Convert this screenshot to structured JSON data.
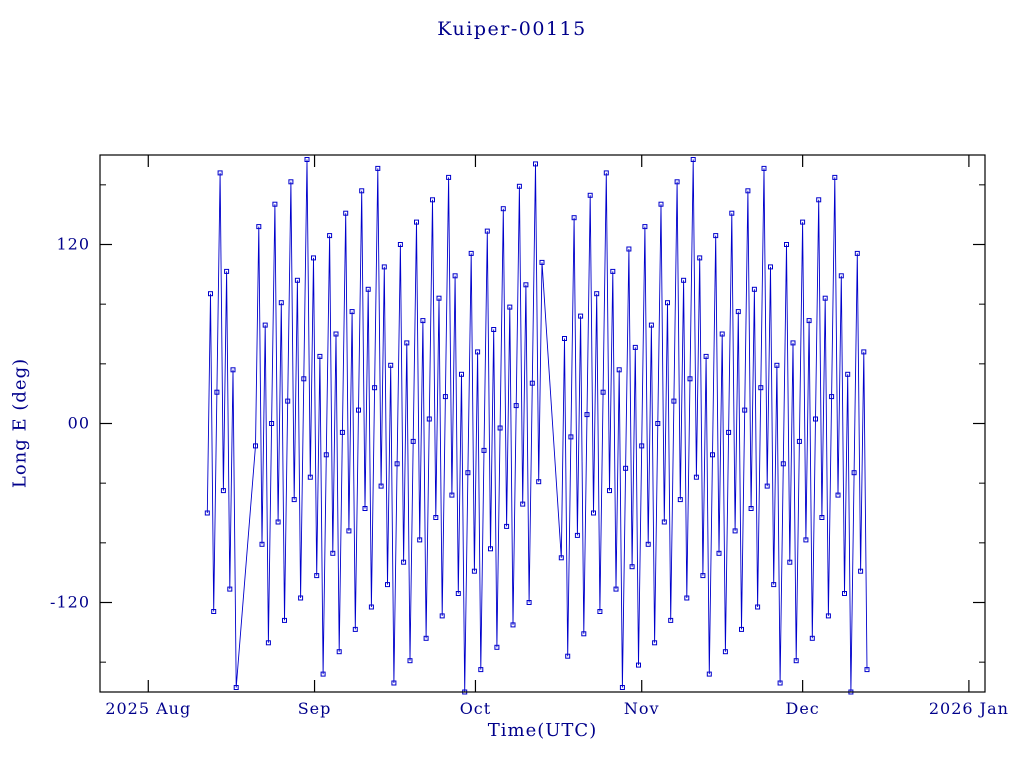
{
  "colors": {
    "background": "#ffffff",
    "data": "#0000cc",
    "text": "#00008b",
    "frame": "#000000"
  },
  "chart_data": {
    "type": "line",
    "title": "Kuiper-00115",
    "xlabel": "Time(UTC)",
    "ylabel": "Long E (deg)",
    "marker": "open-square",
    "legend": "none",
    "grid": "off",
    "x_unit": "days since 2025-08-01",
    "xlim_days": [
      -9,
      156
    ],
    "x_tick_days": [
      0,
      31,
      61,
      92,
      122,
      153
    ],
    "x_tick_labels": [
      "2025 Aug",
      "Sep",
      "Oct",
      "Nov",
      "Dec",
      "2026 Jan"
    ],
    "ylim": [
      -180,
      180
    ],
    "y_ticks": [
      {
        "value": 120,
        "label": "120"
      },
      {
        "value": 0,
        "label": "00"
      },
      {
        "value": -120,
        "label": "-120"
      }
    ],
    "y_minor_ticks": [
      -160,
      -80,
      -40,
      40,
      80,
      160
    ],
    "series": [
      {
        "name": "Long E (deg)",
        "t_days": [
          11,
          11.6,
          12.2,
          12.8,
          13.4,
          14,
          14.6,
          15.2,
          15.8,
          16.4,
          20,
          20.6,
          21.2,
          21.8,
          22.4,
          23,
          23.6,
          24.2,
          24.8,
          25.4,
          26,
          26.6,
          27.2,
          27.8,
          28.4,
          29,
          29.6,
          30.2,
          30.8,
          31.4,
          32,
          32.6,
          33.2,
          33.8,
          34.4,
          35,
          35.6,
          36.2,
          36.8,
          37.4,
          38,
          38.6,
          39.2,
          39.8,
          40.4,
          41,
          41.6,
          42.2,
          42.8,
          43.4,
          44,
          44.6,
          45.2,
          45.8,
          46.4,
          47,
          47.6,
          48.2,
          48.8,
          49.4,
          50,
          50.6,
          51.2,
          51.8,
          52.4,
          53,
          53.6,
          54.2,
          54.8,
          55.4,
          56,
          56.6,
          57.2,
          57.8,
          58.4,
          59,
          59.6,
          60.2,
          60.8,
          61.4,
          62,
          62.6,
          63.2,
          63.8,
          64.4,
          65,
          65.6,
          66.2,
          66.8,
          67.4,
          68,
          68.6,
          69.2,
          69.8,
          70.4,
          71,
          71.6,
          72.2,
          72.8,
          73.4,
          77,
          77.6,
          78.2,
          78.8,
          79.4,
          80,
          80.6,
          81.2,
          81.8,
          82.4,
          83,
          83.6,
          84.2,
          84.8,
          85.4,
          86,
          86.6,
          87.2,
          87.8,
          88.4,
          89,
          89.6,
          90.2,
          90.8,
          91.4,
          92,
          92.6,
          93.2,
          93.8,
          94.4,
          95,
          95.6,
          96.2,
          96.8,
          97.4,
          98,
          98.6,
          99.2,
          99.8,
          100.4,
          101,
          101.6,
          102.2,
          102.8,
          103.4,
          104,
          104.6,
          105.2,
          105.8,
          106.4,
          107,
          107.6,
          108.2,
          108.8,
          109.4,
          110,
          110.6,
          111.2,
          111.8,
          112.4,
          113,
          113.6,
          114.2,
          114.8,
          115.4,
          116,
          116.6,
          117.2,
          117.8,
          118.4,
          119,
          119.6,
          120.2,
          120.8,
          121.4,
          122,
          122.6,
          123.2,
          123.8,
          124.4,
          125,
          125.6,
          126.2,
          126.8,
          127.4,
          128,
          128.6,
          129.2,
          129.8,
          130.4,
          131,
          131.6,
          132.2,
          132.8,
          133.4,
          134
        ],
        "lon_deg": [
          -60,
          87,
          -126,
          21,
          168,
          -45,
          102,
          -111,
          36,
          -177,
          -15,
          132,
          -81,
          66,
          -147,
          0,
          147,
          -66,
          81,
          -132,
          15,
          162,
          -51,
          96,
          -117,
          30,
          177,
          -36,
          111,
          -102,
          45,
          -168,
          -21,
          126,
          -87,
          60,
          -153,
          -6,
          141,
          -72,
          75,
          -138,
          9,
          156,
          -57,
          90,
          -123,
          24,
          171,
          -42,
          105,
          -108,
          39,
          -174,
          -27,
          120,
          -93,
          54,
          -159,
          -12,
          135,
          -78,
          69,
          -144,
          3,
          150,
          -63,
          84,
          -129,
          18,
          165,
          -48,
          99,
          -114,
          33,
          -180,
          -33,
          114,
          -99,
          48,
          -165,
          -18,
          129,
          -84,
          63,
          -150,
          -3,
          144,
          -69,
          78,
          -135,
          12,
          159,
          -54,
          93,
          -120,
          27,
          174,
          -39,
          108,
          -90,
          57,
          -156,
          -9,
          138,
          -75,
          72,
          -141,
          6,
          153,
          -60,
          87,
          -126,
          21,
          168,
          -45,
          102,
          -111,
          36,
          -177,
          -30,
          117,
          -96,
          51,
          -162,
          -15,
          132,
          -81,
          66,
          -147,
          0,
          147,
          -66,
          81,
          -132,
          15,
          162,
          -51,
          96,
          -117,
          30,
          177,
          -36,
          111,
          -102,
          45,
          -168,
          -21,
          126,
          -87,
          60,
          -153,
          -6,
          141,
          -72,
          75,
          -138,
          9,
          156,
          -57,
          90,
          -123,
          24,
          171,
          -42,
          105,
          -108,
          39,
          -174,
          -27,
          120,
          -93,
          54,
          -159,
          -12,
          135,
          -78,
          69,
          -144,
          3,
          150,
          -63,
          84,
          -129,
          18,
          165,
          -48,
          99,
          -114,
          33,
          -180,
          -33,
          114,
          -99,
          48,
          -165
        ]
      }
    ]
  }
}
